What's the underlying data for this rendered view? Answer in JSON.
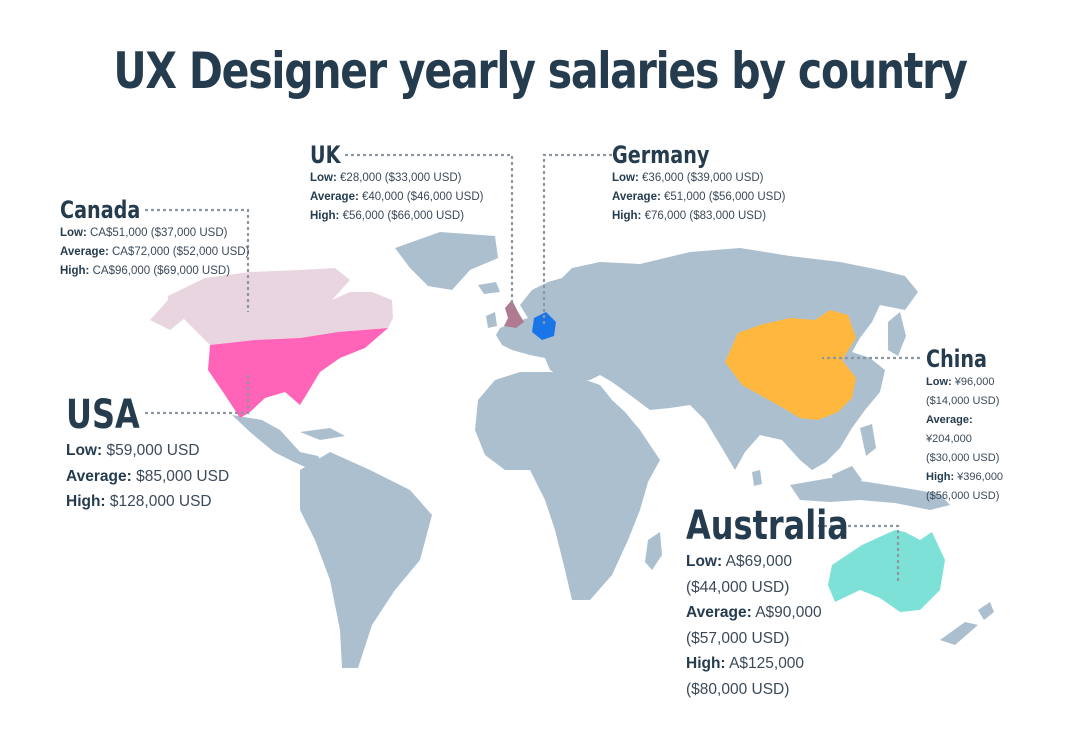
{
  "title": "UX Designer yearly salaries by country",
  "colors": {
    "land": "#abbfcf",
    "canada": "#e9d5df",
    "usa": "#ff64b8",
    "uk": "#b07a92",
    "germany": "#1a76e8",
    "china": "#ffb83d",
    "australia": "#7ee1d8"
  },
  "countries": {
    "canada": {
      "name": "Canada",
      "low": {
        "label": "Low:",
        "value": "CA$51,000 ($37,000 USD)"
      },
      "average": {
        "label": "Average:",
        "value": "CA$72,000 ($52,000 USD)"
      },
      "high": {
        "label": "High:",
        "value": "CA$96,000 ($69,000 USD)"
      }
    },
    "uk": {
      "name": "UK",
      "low": {
        "label": "Low:",
        "value": "€28,000 ($33,000 USD)"
      },
      "average": {
        "label": "Average:",
        "value": "€40,000 ($46,000 USD)"
      },
      "high": {
        "label": "High:",
        "value": "€56,000 ($66,000 USD)"
      }
    },
    "germany": {
      "name": "Germany",
      "low": {
        "label": "Low:",
        "value": "€36,000 ($39,000 USD)"
      },
      "average": {
        "label": "Average:",
        "value": "€51,000 ($56,000 USD)"
      },
      "high": {
        "label": "High:",
        "value": "€76,000 ($83,000 USD)"
      }
    },
    "usa": {
      "name": "USA",
      "low": {
        "label": "Low:",
        "value": "$59,000 USD"
      },
      "average": {
        "label": "Average:",
        "value": "$85,000 USD"
      },
      "high": {
        "label": "High:",
        "value": "$128,000 USD"
      }
    },
    "china": {
      "name": "China",
      "low": {
        "label": "Low:",
        "value": "¥96,000 ($14,000 USD)"
      },
      "average": {
        "label": "Average:",
        "value": "¥204,000 ($30,000 USD)"
      },
      "high": {
        "label": "High:",
        "value": "¥396,000 ($56,000 USD)"
      }
    },
    "australia": {
      "name": "Australia",
      "low": {
        "label": "Low:",
        "value": "A$69,000 ($44,000 USD)"
      },
      "average": {
        "label": "Average:",
        "value": "A$90,000 ($57,000 USD)"
      },
      "high": {
        "label": "High:",
        "value": "A$125,000 ($80,000 USD)"
      }
    }
  }
}
